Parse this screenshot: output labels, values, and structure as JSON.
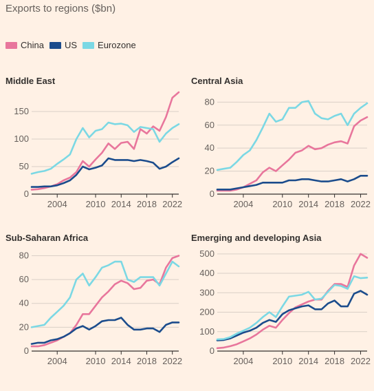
{
  "title": "Exports to regions ($bn)",
  "legend": [
    {
      "name": "China",
      "color": "#e8769c"
    },
    {
      "name": "US",
      "color": "#1b4c8c"
    },
    {
      "name": "Eurozone",
      "color": "#7bd8e4"
    }
  ],
  "chart_data": [
    {
      "type": "line",
      "title": "Middle East",
      "x": [
        2000,
        2001,
        2002,
        2003,
        2004,
        2005,
        2006,
        2007,
        2008,
        2009,
        2010,
        2011,
        2012,
        2013,
        2014,
        2015,
        2016,
        2017,
        2018,
        2019,
        2020,
        2021,
        2022,
        2023
      ],
      "x_ticks": [
        2004,
        2010,
        2014,
        2018,
        2022
      ],
      "ylim": [
        0,
        180
      ],
      "y_ticks": [
        0,
        50,
        100,
        150
      ],
      "series": [
        {
          "name": "China",
          "values": [
            8,
            9,
            11,
            14,
            18,
            25,
            30,
            40,
            60,
            50,
            63,
            75,
            92,
            82,
            93,
            95,
            82,
            118,
            110,
            123,
            115,
            140,
            175,
            185
          ]
        },
        {
          "name": "US",
          "values": [
            13,
            13,
            14,
            14,
            16,
            20,
            25,
            35,
            50,
            45,
            48,
            52,
            65,
            62,
            62,
            62,
            60,
            62,
            60,
            57,
            46,
            50,
            58,
            65
          ]
        },
        {
          "name": "Eurozone",
          "values": [
            37,
            40,
            42,
            46,
            55,
            63,
            72,
            100,
            120,
            103,
            115,
            118,
            130,
            127,
            128,
            125,
            113,
            122,
            120,
            118,
            95,
            110,
            120,
            127
          ]
        }
      ]
    },
    {
      "type": "line",
      "title": "Central Asia",
      "x": [
        2000,
        2001,
        2002,
        2003,
        2004,
        2005,
        2006,
        2007,
        2008,
        2009,
        2010,
        2011,
        2012,
        2013,
        2014,
        2015,
        2016,
        2017,
        2018,
        2019,
        2020,
        2021,
        2022,
        2023
      ],
      "x_ticks": [
        2004,
        2010,
        2014,
        2018,
        2022
      ],
      "ylim": [
        0,
        85
      ],
      "y_ticks": [
        0,
        20,
        40,
        60,
        80
      ],
      "series": [
        {
          "name": "China",
          "values": [
            3,
            3,
            3,
            4,
            6,
            9,
            12,
            19,
            23,
            20,
            25,
            30,
            36,
            38,
            42,
            39,
            40,
            43,
            45,
            46,
            44,
            59,
            64,
            67
          ]
        },
        {
          "name": "US",
          "values": [
            4,
            4,
            4,
            5,
            6,
            7,
            8,
            10,
            10,
            10,
            10,
            12,
            12,
            13,
            13,
            12,
            11,
            11,
            12,
            13,
            11,
            13,
            16,
            16
          ]
        },
        {
          "name": "Eurozone",
          "values": [
            21,
            22,
            23,
            28,
            34,
            38,
            47,
            58,
            70,
            63,
            65,
            75,
            75,
            80,
            81,
            70,
            66,
            65,
            68,
            70,
            60,
            70,
            75,
            79
          ]
        }
      ]
    },
    {
      "type": "line",
      "title": "Sub-Saharan Africa",
      "x": [
        2000,
        2001,
        2002,
        2003,
        2004,
        2005,
        2006,
        2007,
        2008,
        2009,
        2010,
        2011,
        2012,
        2013,
        2014,
        2015,
        2016,
        2017,
        2018,
        2019,
        2020,
        2021,
        2022,
        2023
      ],
      "x_ticks": [
        2004,
        2010,
        2014,
        2018,
        2022
      ],
      "ylim": [
        0,
        82
      ],
      "y_ticks": [
        0,
        20,
        40,
        60,
        80
      ],
      "series": [
        {
          "name": "China",
          "values": [
            4,
            4,
            5,
            7,
            9,
            12,
            15,
            22,
            31,
            31,
            38,
            45,
            50,
            56,
            59,
            57,
            52,
            53,
            59,
            60,
            56,
            70,
            78,
            80
          ]
        },
        {
          "name": "US",
          "values": [
            6,
            7,
            7,
            9,
            10,
            12,
            15,
            19,
            21,
            18,
            21,
            25,
            26,
            26,
            28,
            22,
            18,
            18,
            19,
            19,
            16,
            22,
            24,
            24
          ]
        },
        {
          "name": "Eurozone",
          "values": [
            20,
            21,
            22,
            28,
            33,
            38,
            45,
            60,
            65,
            55,
            62,
            70,
            72,
            75,
            75,
            60,
            58,
            62,
            62,
            62,
            55,
            65,
            75,
            71
          ]
        }
      ]
    },
    {
      "type": "line",
      "title": "Emerging and developing Asia",
      "x": [
        2000,
        2001,
        2002,
        2003,
        2004,
        2005,
        2006,
        2007,
        2008,
        2009,
        2010,
        2011,
        2012,
        2013,
        2014,
        2015,
        2016,
        2017,
        2018,
        2019,
        2020,
        2021,
        2022,
        2023
      ],
      "x_ticks": [
        2004,
        2010,
        2014,
        2018,
        2022
      ],
      "ylim": [
        0,
        510
      ],
      "y_ticks": [
        0,
        100,
        200,
        300,
        400,
        500
      ],
      "series": [
        {
          "name": "China",
          "values": [
            15,
            18,
            25,
            35,
            50,
            65,
            85,
            110,
            130,
            120,
            160,
            195,
            225,
            240,
            255,
            265,
            265,
            310,
            345,
            345,
            330,
            440,
            500,
            480
          ]
        },
        {
          "name": "US",
          "values": [
            55,
            57,
            65,
            80,
            95,
            105,
            120,
            145,
            160,
            150,
            190,
            210,
            220,
            230,
            235,
            215,
            215,
            245,
            260,
            230,
            230,
            295,
            310,
            290
          ]
        },
        {
          "name": "Eurozone",
          "values": [
            60,
            62,
            72,
            90,
            105,
            120,
            145,
            175,
            200,
            175,
            230,
            280,
            285,
            290,
            305,
            265,
            270,
            305,
            340,
            335,
            320,
            385,
            375,
            378
          ]
        }
      ]
    }
  ]
}
